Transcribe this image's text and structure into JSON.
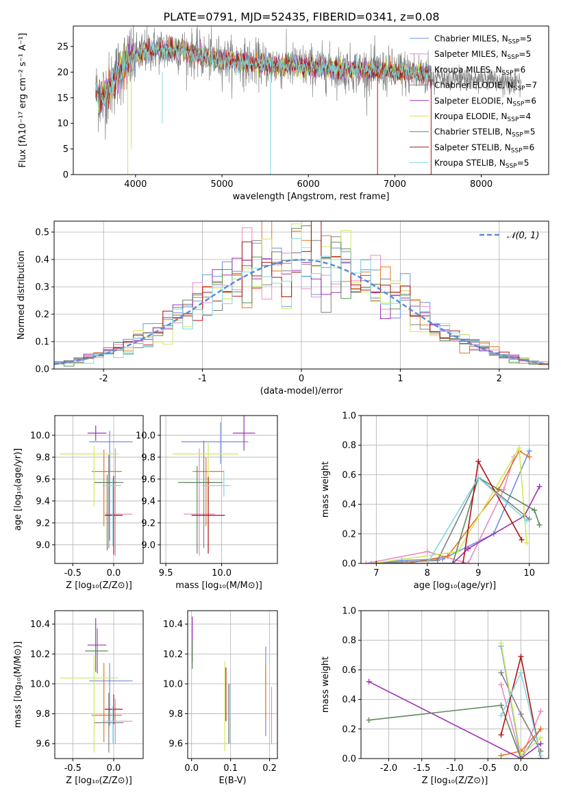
{
  "figure_title": "PLATE=0791, MJD=52435, FIBERID=0341, z=0.08",
  "series": [
    {
      "name": "Chabrier MILES",
      "nssp": "5",
      "color": "#6f8fdf"
    },
    {
      "name": "Salpeter MILES",
      "nssp": "5",
      "color": "#e88bc4"
    },
    {
      "name": "Kroupa MILES",
      "nssp": "6",
      "color": "#e8751a"
    },
    {
      "name": "Chabrier ELODIE",
      "nssp": "7",
      "color": "#808080"
    },
    {
      "name": "Salpeter ELODIE",
      "nssp": "6",
      "color": "#9f2fb5"
    },
    {
      "name": "Kroupa ELODIE",
      "nssp": "4",
      "color": "#cfe85a"
    },
    {
      "name": "Chabrier STELIB",
      "nssp": "5",
      "color": "#5a8a5a"
    },
    {
      "name": "Salpeter STELIB",
      "nssp": "6",
      "color": "#b01010"
    },
    {
      "name": "Kroupa STELIB",
      "nssp": "5",
      "color": "#80d8e0"
    }
  ],
  "chart_data": [
    {
      "type": "line",
      "panel": "spectrum",
      "title": "PLATE=0791, MJD=52435, FIBERID=0341, z=0.08",
      "xlabel": "wavelength [Angstrom, rest frame]",
      "ylabel": "Flux [fλ10⁻¹⁷ erg cm⁻² s⁻¹ A⁻¹]",
      "xlim": [
        3280,
        8780
      ],
      "ylim": [
        0,
        29
      ],
      "xticks": [
        4000,
        5000,
        6000,
        7000,
        8000
      ],
      "yticks": [
        0,
        5,
        10,
        15,
        20,
        25
      ],
      "legend": "upper right",
      "data_continuum": [
        [
          3540,
          16
        ],
        [
          3600,
          15
        ],
        [
          3700,
          17
        ],
        [
          3800,
          20
        ],
        [
          3900,
          22
        ],
        [
          4000,
          23
        ],
        [
          4100,
          24
        ],
        [
          4200,
          24.5
        ],
        [
          4400,
          24.5
        ],
        [
          4600,
          24
        ],
        [
          4800,
          23
        ],
        [
          5000,
          22.5
        ],
        [
          5200,
          22
        ],
        [
          5500,
          21.5
        ],
        [
          6000,
          21
        ],
        [
          6500,
          20.5
        ],
        [
          7000,
          20
        ],
        [
          7400,
          19.5
        ]
      ]
    },
    {
      "type": "line",
      "panel": "residual_histogram",
      "xlabel": "(data-model)/error",
      "ylabel": "Normed distribution",
      "xlim": [
        -2.5,
        2.5
      ],
      "ylim": [
        0,
        0.54
      ],
      "xticks": [
        -2,
        -1,
        0,
        1,
        2
      ],
      "yticks": [
        0.0,
        0.1,
        0.2,
        0.3,
        0.4,
        0.5
      ],
      "grid": true,
      "reference_curve": "𝒩(0, 1)",
      "bin_width": 0.1
    },
    {
      "type": "scatter",
      "panel": "age_vs_Z",
      "xlabel": "Z [log₁₀(Z/Z⊙)]",
      "ylabel": "age  [log₁₀(age/yr)]",
      "xlim": [
        -0.72,
        0.36
      ],
      "ylim": [
        8.83,
        10.18
      ],
      "xticks": [
        -0.5,
        0.0
      ],
      "yticks": [
        9.0,
        9.2,
        9.4,
        9.6,
        9.8,
        10.0
      ],
      "grid": true,
      "points": [
        {
          "series": "Chabrier MILES",
          "x": -0.05,
          "y": 9.94,
          "xerr": [
            0.25,
            0.28
          ],
          "yerr": [
            0.9,
            0.1
          ]
        },
        {
          "series": "Salpeter MILES",
          "x": 0.02,
          "y": 9.28,
          "xerr": [
            0.12,
            0.21
          ],
          "yerr": [
            0.38,
            0.6
          ]
        },
        {
          "series": "Kroupa MILES",
          "x": -0.12,
          "y": 9.67,
          "xerr": [
            0.15,
            0.22
          ],
          "yerr": [
            0.5,
            0.2
          ]
        },
        {
          "series": "Chabrier ELODIE",
          "x": -0.06,
          "y": 9.57,
          "xerr": [
            0.18,
            0.18
          ],
          "yerr": [
            0.6,
            0.25
          ]
        },
        {
          "series": "Salpeter ELODIE",
          "x": -0.22,
          "y": 10.02,
          "xerr": [
            0.1,
            0.13
          ],
          "yerr": [
            0.07,
            0.07
          ]
        },
        {
          "series": "Kroupa ELODIE",
          "x": -0.24,
          "y": 9.83,
          "xerr": [
            0.42,
            0.3
          ],
          "yerr": [
            0.48,
            0.07
          ]
        },
        {
          "series": "Chabrier STELIB",
          "x": -0.08,
          "y": 9.57,
          "xerr": [
            0.15,
            0.13
          ],
          "yerr": [
            0.62,
            0.07
          ]
        },
        {
          "series": "Salpeter STELIB",
          "x": 0.0,
          "y": 9.27,
          "xerr": [
            0.11,
            0.11
          ],
          "yerr": [
            0.36,
            0.36
          ]
        },
        {
          "series": "Kroupa STELIB",
          "x": -0.01,
          "y": 9.54,
          "xerr": [
            0.13,
            0.1
          ],
          "yerr": [
            0.55,
            0.07
          ]
        }
      ]
    },
    {
      "type": "scatter",
      "panel": "age_vs_mass",
      "xlabel": "mass [log₁₀(M/M⊙)]",
      "xlim": [
        9.45,
        10.5
      ],
      "ylim": [
        8.83,
        10.18
      ],
      "xticks": [
        9.5,
        10.0
      ],
      "yticks": [
        9.0,
        9.2,
        9.4,
        9.6,
        9.8,
        10.0
      ],
      "grid": true,
      "points": [
        {
          "series": "Chabrier MILES",
          "x": 9.99,
          "y": 9.94,
          "xerr": [
            0.35,
            0.25
          ],
          "yerr": [
            0.2,
            0.18
          ]
        },
        {
          "series": "Salpeter MILES",
          "x": 9.8,
          "y": 9.28,
          "xerr": [
            0.14,
            0.14
          ],
          "yerr": [
            0.38,
            0.6
          ]
        },
        {
          "series": "Kroupa MILES",
          "x": 9.86,
          "y": 9.67,
          "xerr": [
            0.12,
            0.16
          ],
          "yerr": [
            0.5,
            0.13
          ]
        },
        {
          "series": "Chabrier ELODIE",
          "x": 9.84,
          "y": 9.57,
          "xerr": [
            0.17,
            0.17
          ],
          "yerr": [
            0.6,
            0.38
          ]
        },
        {
          "series": "Salpeter ELODIE",
          "x": 10.2,
          "y": 10.02,
          "xerr": [
            0.1,
            0.1
          ],
          "yerr": [
            0.16,
            0.16
          ]
        },
        {
          "series": "Kroupa ELODIE",
          "x": 9.88,
          "y": 9.83,
          "xerr": [
            0.32,
            0.27
          ],
          "yerr": [
            0.48,
            0.1
          ]
        },
        {
          "series": "Chabrier STELIB",
          "x": 9.78,
          "y": 9.57,
          "xerr": [
            0.17,
            0.21
          ],
          "yerr": [
            0.65,
            0.15
          ]
        },
        {
          "series": "Salpeter STELIB",
          "x": 9.88,
          "y": 9.27,
          "xerr": [
            0.15,
            0.15
          ],
          "yerr": [
            0.35,
            0.35
          ]
        },
        {
          "series": "Kroupa STELIB",
          "x": 10.02,
          "y": 9.54,
          "xerr": [
            0.2,
            0.06
          ],
          "yerr": [
            0.1,
            0.14
          ]
        }
      ]
    },
    {
      "type": "line",
      "panel": "mass_weight_vs_age",
      "xlabel": "age  [log₁₀(age/yr)]",
      "ylabel": "mass weight",
      "xlim": [
        6.7,
        10.38
      ],
      "ylim": [
        0,
        1.0
      ],
      "xticks": [
        7,
        8,
        9,
        10
      ],
      "yticks": [
        0.0,
        0.2,
        0.4,
        0.6,
        0.8,
        1.0
      ],
      "grid": true,
      "series": [
        {
          "name": "Chabrier MILES",
          "x": [
            6.9,
            7.5,
            8.3,
            9.3,
            10.0
          ],
          "y": [
            0.0,
            0.02,
            0.03,
            0.2,
            0.76
          ]
        },
        {
          "name": "Salpeter MILES",
          "x": [
            6.8,
            8.0,
            8.8,
            9.5,
            9.7
          ],
          "y": [
            0.0,
            0.08,
            0.0,
            0.5,
            0.72
          ]
        },
        {
          "name": "Kroupa MILES",
          "x": [
            6.9,
            7.6,
            8.4,
            9.4,
            9.8,
            10.0
          ],
          "y": [
            0.0,
            0.0,
            0.05,
            0.5,
            0.76,
            0.72
          ]
        },
        {
          "name": "Chabrier ELODIE",
          "x": [
            6.9,
            8.2,
            9.0,
            10.0
          ],
          "y": [
            0.0,
            0.02,
            0.58,
            0.3
          ]
        },
        {
          "name": "Salpeter ELODIE",
          "x": [
            7.0,
            8.5,
            8.8,
            9.9,
            10.2
          ],
          "y": [
            0.0,
            0.0,
            0.1,
            0.32,
            0.52
          ]
        },
        {
          "name": "Kroupa ELODIE",
          "x": [
            6.9,
            8.6,
            9.8,
            9.95
          ],
          "y": [
            0.0,
            0.08,
            0.78,
            0.14
          ]
        },
        {
          "name": "Chabrier STELIB",
          "x": [
            6.9,
            8.5,
            9.0,
            10.1,
            10.2
          ],
          "y": [
            0.0,
            0.0,
            0.58,
            0.36,
            0.26
          ]
        },
        {
          "name": "Salpeter STELIB",
          "x": [
            7.0,
            8.7,
            9.0,
            9.85
          ],
          "y": [
            0.0,
            0.0,
            0.69,
            0.16
          ]
        },
        {
          "name": "Kroupa STELIB",
          "x": [
            6.9,
            8.0,
            9.0,
            9.95
          ],
          "y": [
            0.0,
            0.0,
            0.58,
            0.29
          ]
        }
      ]
    },
    {
      "type": "scatter",
      "panel": "mass_vs_Z",
      "xlabel": "Z [log₁₀(Z/Z⊙)]",
      "ylabel": "mass [log₁₀(M/M⊙)]",
      "xlim": [
        -0.72,
        0.36
      ],
      "ylim": [
        9.5,
        10.49
      ],
      "xticks": [
        -0.5,
        0.0
      ],
      "yticks": [
        9.6,
        9.8,
        10.0,
        10.2,
        10.4
      ],
      "grid": true,
      "points": [
        {
          "series": "Chabrier MILES",
          "x": -0.05,
          "y": 10.02,
          "xerr": [
            0.25,
            0.28
          ],
          "yerr": [
            0.3,
            0.12
          ]
        },
        {
          "series": "Salpeter MILES",
          "x": 0.02,
          "y": 9.75,
          "xerr": [
            0.12,
            0.21
          ],
          "yerr": [
            0.15,
            0.15
          ]
        },
        {
          "series": "Kroupa MILES",
          "x": -0.12,
          "y": 9.79,
          "xerr": [
            0.15,
            0.22
          ],
          "yerr": [
            0.18,
            0.35
          ]
        },
        {
          "series": "Chabrier ELODIE",
          "x": -0.06,
          "y": 9.74,
          "xerr": [
            0.18,
            0.18
          ],
          "yerr": [
            0.2,
            0.2
          ]
        },
        {
          "series": "Salpeter ELODIE",
          "x": -0.22,
          "y": 10.26,
          "xerr": [
            0.1,
            0.13
          ],
          "yerr": [
            0.18,
            0.18
          ]
        },
        {
          "series": "Kroupa ELODIE",
          "x": -0.24,
          "y": 10.04,
          "xerr": [
            0.42,
            0.3
          ],
          "yerr": [
            0.5,
            0.15
          ]
        },
        {
          "series": "Chabrier STELIB",
          "x": -0.2,
          "y": 10.22,
          "xerr": [
            0.15,
            0.13
          ],
          "yerr": [
            0.15,
            0.15
          ]
        },
        {
          "series": "Salpeter STELIB",
          "x": 0.0,
          "y": 9.83,
          "xerr": [
            0.11,
            0.11
          ],
          "yerr": [
            0.1,
            0.1
          ]
        },
        {
          "series": "Kroupa STELIB",
          "x": -0.01,
          "y": 9.75,
          "xerr": [
            0.13,
            0.1
          ],
          "yerr": [
            0.15,
            0.1
          ]
        }
      ]
    },
    {
      "type": "scatter",
      "panel": "mass_vs_EBV",
      "xlabel": "E(B-V)",
      "xlim": [
        -0.01,
        0.22
      ],
      "ylim": [
        9.5,
        10.49
      ],
      "xticks": [
        0.0,
        0.1,
        0.2
      ],
      "yticks": [
        9.6,
        9.8,
        10.0,
        10.2,
        10.4
      ],
      "grid": true,
      "points": [
        {
          "series": "Chabrier MILES",
          "x": 0.19,
          "y": 9.95,
          "yerr": [
            0.3,
            0.3
          ]
        },
        {
          "series": "Salpeter MILES",
          "x": 0.205,
          "y": 9.8,
          "yerr": [
            0.2,
            0.18
          ]
        },
        {
          "series": "Kroupa MILES",
          "x": 0.19,
          "y": 9.95,
          "yerr": [
            0.18,
            0.18
          ]
        },
        {
          "series": "Chabrier ELODIE",
          "x": 0.095,
          "y": 9.8,
          "yerr": [
            0.2,
            0.2
          ]
        },
        {
          "series": "Salpeter ELODIE",
          "x": 0.002,
          "y": 10.3,
          "yerr": [
            0.15,
            0.15
          ]
        },
        {
          "series": "Kroupa ELODIE",
          "x": 0.085,
          "y": 9.85,
          "yerr": [
            0.3,
            0.3
          ]
        },
        {
          "series": "Chabrier STELIB",
          "x": 0.002,
          "y": 10.2,
          "yerr": [
            0.1,
            0.1
          ]
        },
        {
          "series": "Salpeter STELIB",
          "x": 0.088,
          "y": 9.93,
          "yerr": [
            0.18,
            0.18
          ]
        },
        {
          "series": "Kroupa STELIB",
          "x": 0.098,
          "y": 9.8,
          "yerr": [
            0.2,
            0.2
          ]
        }
      ]
    },
    {
      "type": "line",
      "panel": "mass_weight_vs_Z",
      "xlabel": "Z [log₁₀(Z/Z⊙)]",
      "ylabel": "mass weight",
      "xlim": [
        -2.42,
        0.42
      ],
      "ylim": [
        0,
        1.0
      ],
      "xticks": [
        -2.0,
        -1.5,
        -1.0,
        -0.5,
        0.0
      ],
      "yticks": [
        0.0,
        0.2,
        0.4,
        0.6,
        0.8,
        1.0
      ],
      "grid": true,
      "series": [
        {
          "name": "Chabrier MILES",
          "x": [
            -0.3,
            0.0,
            0.3
          ],
          "y": [
            0.76,
            0.0,
            0.2
          ]
        },
        {
          "name": "Salpeter MILES",
          "x": [
            -0.3,
            0.0,
            0.3
          ],
          "y": [
            0.5,
            0.0,
            0.32
          ]
        },
        {
          "name": "Kroupa MILES",
          "x": [
            -0.3,
            0.0,
            0.3
          ],
          "y": [
            0.02,
            0.05,
            0.2
          ]
        },
        {
          "name": "Chabrier ELODIE",
          "x": [
            -0.3,
            0.0,
            0.3
          ],
          "y": [
            0.58,
            0.3,
            0.05
          ]
        },
        {
          "name": "Salpeter ELODIE",
          "x": [
            -2.3,
            0.0,
            0.3
          ],
          "y": [
            0.52,
            0.0,
            0.1
          ]
        },
        {
          "name": "Kroupa ELODIE",
          "x": [
            -0.3,
            0.0,
            0.3
          ],
          "y": [
            0.78,
            0.02,
            0.14
          ]
        },
        {
          "name": "Chabrier STELIB",
          "x": [
            -2.3,
            -0.3,
            0.0,
            0.3
          ],
          "y": [
            0.26,
            0.36,
            0.0,
            0.0
          ]
        },
        {
          "name": "Salpeter STELIB",
          "x": [
            -0.3,
            0.0,
            0.3
          ],
          "y": [
            0.16,
            0.69,
            0.0
          ]
        },
        {
          "name": "Kroupa STELIB",
          "x": [
            -0.3,
            0.0,
            0.3
          ],
          "y": [
            0.29,
            0.58,
            0.02
          ]
        }
      ]
    }
  ]
}
